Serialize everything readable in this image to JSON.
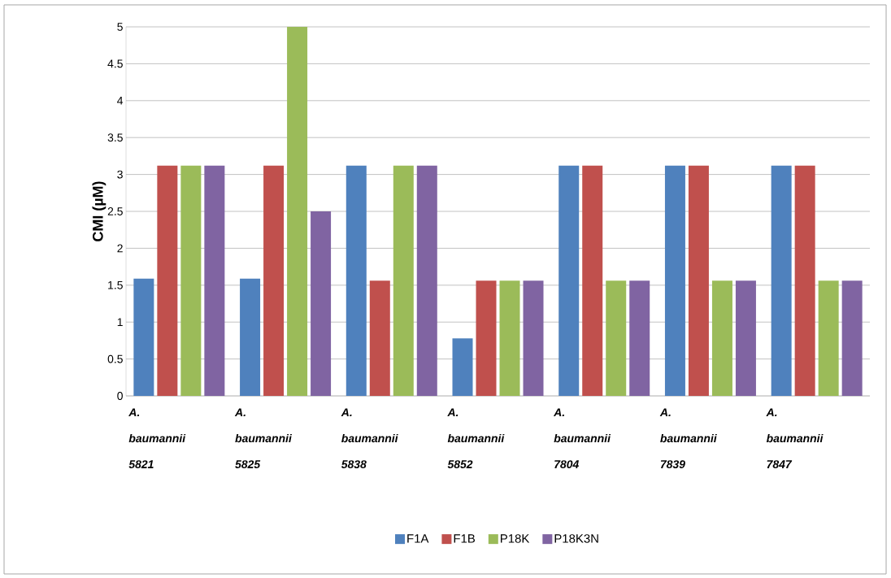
{
  "chart_data": {
    "type": "bar",
    "ylabel": "CMI (µM)",
    "categories": [
      "A. baumannii 5821",
      "A. baumannii 5825",
      "A. baumannii 5838",
      "A. baumannii 5852",
      "A. baumannii 7804",
      "A. baumannii 7839",
      "A. baumannii 7847"
    ],
    "series": [
      {
        "name": "F1A",
        "color": "#4f81bd",
        "values": [
          1.59,
          1.59,
          3.12,
          0.78,
          3.12,
          3.12,
          3.12
        ]
      },
      {
        "name": "F1B",
        "color": "#c0504d",
        "values": [
          3.12,
          3.12,
          1.56,
          1.56,
          3.12,
          3.12,
          3.12
        ]
      },
      {
        "name": "P18K",
        "color": "#9bbb59",
        "values": [
          3.12,
          5,
          3.12,
          1.56,
          1.56,
          1.56,
          1.56
        ]
      },
      {
        "name": "P18K3N",
        "color": "#8064a2",
        "values": [
          3.12,
          2.5,
          3.12,
          1.56,
          1.56,
          1.56,
          1.56
        ]
      }
    ],
    "ylim": [
      0,
      5
    ],
    "yticks": [
      0,
      0.5,
      1,
      1.5,
      2,
      2.5,
      3,
      3.5,
      4,
      4.5,
      5
    ],
    "grid": "y",
    "legend": "bottom"
  }
}
